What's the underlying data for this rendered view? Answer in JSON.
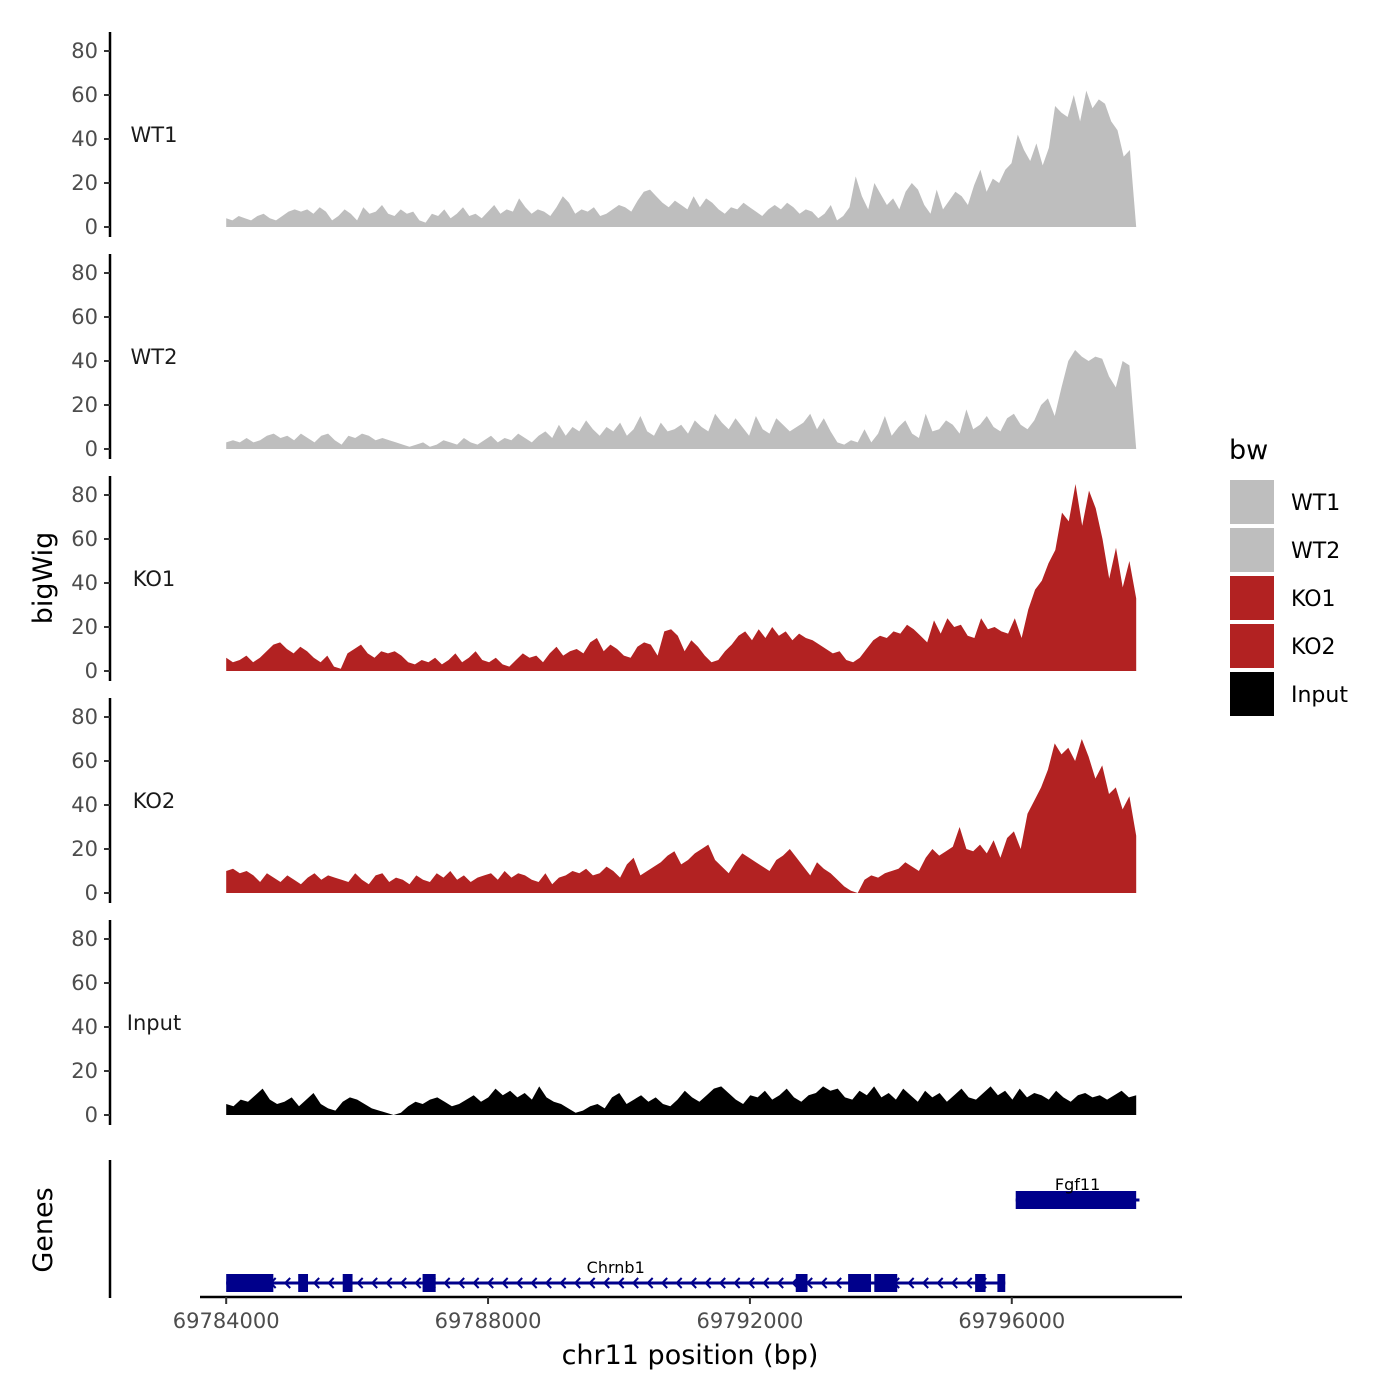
{
  "chart_data": {
    "type": "area",
    "ylabel": "bigWig",
    "xlabel": "chr11 position (bp)",
    "gene_track_label": "Genes",
    "x_range": [
      69784000,
      69797900
    ],
    "x_axis_range": [
      69783600,
      69798600
    ],
    "x_ticks": [
      {
        "value": 69784000,
        "label": "69784000"
      },
      {
        "value": 69788000,
        "label": "69788000"
      },
      {
        "value": 69792000,
        "label": "69792000"
      },
      {
        "value": 69796000,
        "label": "69796000"
      }
    ],
    "y_ticks": [
      0,
      20,
      40,
      60,
      80
    ],
    "ylim": [
      0,
      88
    ],
    "legend": {
      "title": "bw",
      "entries": [
        {
          "label": "WT1",
          "color": "#BEBEBE"
        },
        {
          "label": "WT2",
          "color": "#BEBEBE"
        },
        {
          "label": "KO1",
          "color": "#B22222"
        },
        {
          "label": "KO2",
          "color": "#B22222"
        },
        {
          "label": "Input",
          "color": "#000000"
        }
      ]
    },
    "series": [
      {
        "name": "WT1",
        "color": "#BEBEBE",
        "values": [
          4,
          3,
          5,
          4,
          3,
          5,
          6,
          4,
          3,
          5,
          7,
          8,
          7,
          8,
          6,
          9,
          7,
          3,
          5,
          8,
          6,
          3,
          9,
          6,
          7,
          10,
          6,
          5,
          8,
          6,
          7,
          3,
          2,
          6,
          5,
          8,
          4,
          6,
          9,
          5,
          6,
          4,
          7,
          10,
          6,
          8,
          7,
          13,
          9,
          6,
          8,
          7,
          5,
          9,
          14,
          11,
          6,
          8,
          7,
          9,
          5,
          6,
          8,
          10,
          9,
          7,
          12,
          16,
          17,
          14,
          11,
          9,
          12,
          10,
          8,
          14,
          9,
          13,
          11,
          8,
          6,
          9,
          8,
          11,
          9,
          7,
          5,
          8,
          10,
          8,
          11,
          9,
          6,
          8,
          7,
          4,
          6,
          10,
          3,
          5,
          9,
          23,
          14,
          8,
          20,
          15,
          10,
          13,
          8,
          16,
          20,
          17,
          10,
          6,
          17,
          8,
          12,
          16,
          14,
          10,
          19,
          26,
          16,
          22,
          20,
          26,
          29,
          42,
          35,
          30,
          38,
          28,
          36,
          55,
          52,
          50,
          60,
          48,
          62,
          54,
          58,
          56,
          48,
          44,
          32,
          35,
          0
        ]
      },
      {
        "name": "WT2",
        "color": "#BEBEBE",
        "values": [
          3,
          4,
          3,
          5,
          3,
          4,
          6,
          7,
          5,
          6,
          4,
          7,
          5,
          3,
          6,
          7,
          4,
          2,
          6,
          5,
          7,
          6,
          4,
          5,
          4,
          3,
          2,
          1,
          2,
          3,
          1,
          2,
          4,
          3,
          2,
          5,
          3,
          2,
          4,
          6,
          3,
          5,
          4,
          7,
          5,
          3,
          6,
          8,
          5,
          11,
          6,
          10,
          8,
          13,
          9,
          6,
          10,
          8,
          12,
          6,
          9,
          15,
          8,
          6,
          12,
          8,
          9,
          11,
          7,
          13,
          10,
          8,
          16,
          12,
          9,
          14,
          10,
          6,
          15,
          9,
          7,
          14,
          11,
          8,
          10,
          12,
          16,
          9,
          14,
          8,
          3,
          2,
          4,
          3,
          9,
          3,
          7,
          15,
          6,
          10,
          13,
          7,
          5,
          16,
          8,
          9,
          13,
          11,
          7,
          18,
          9,
          11,
          15,
          10,
          8,
          14,
          16,
          11,
          9,
          13,
          20,
          23,
          15,
          28,
          40,
          45,
          42,
          40,
          42,
          41,
          33,
          28,
          40,
          38,
          0
        ]
      },
      {
        "name": "KO1",
        "color": "#B22222",
        "values": [
          6,
          4,
          5,
          7,
          4,
          6,
          9,
          12,
          13,
          10,
          8,
          11,
          9,
          6,
          4,
          7,
          2,
          1,
          8,
          10,
          12,
          8,
          6,
          9,
          8,
          9,
          7,
          4,
          3,
          5,
          4,
          6,
          3,
          5,
          8,
          4,
          6,
          9,
          5,
          4,
          6,
          3,
          2,
          5,
          8,
          6,
          7,
          4,
          8,
          11,
          7,
          9,
          10,
          8,
          13,
          15,
          9,
          12,
          10,
          7,
          6,
          11,
          13,
          12,
          7,
          18,
          19,
          16,
          9,
          14,
          11,
          7,
          4,
          5,
          9,
          12,
          16,
          18,
          14,
          19,
          15,
          20,
          16,
          18,
          14,
          17,
          15,
          14,
          12,
          10,
          8,
          9,
          5,
          4,
          6,
          10,
          14,
          16,
          15,
          18,
          17,
          21,
          19,
          16,
          13,
          23,
          17,
          24,
          20,
          21,
          16,
          15,
          24,
          19,
          20,
          18,
          17,
          24,
          15,
          28,
          37,
          41,
          49,
          55,
          72,
          68,
          85,
          66,
          82,
          74,
          60,
          42,
          56,
          38,
          50,
          33
        ]
      },
      {
        "name": "KO2",
        "color": "#B22222",
        "values": [
          10,
          11,
          9,
          10,
          8,
          5,
          9,
          7,
          5,
          8,
          6,
          4,
          7,
          9,
          6,
          8,
          7,
          6,
          5,
          9,
          6,
          4,
          8,
          9,
          5,
          7,
          6,
          4,
          8,
          6,
          5,
          9,
          7,
          10,
          6,
          8,
          5,
          7,
          8,
          9,
          6,
          10,
          7,
          9,
          8,
          6,
          5,
          9,
          4,
          7,
          8,
          10,
          9,
          11,
          8,
          9,
          12,
          10,
          7,
          13,
          16,
          8,
          10,
          12,
          14,
          17,
          19,
          13,
          15,
          18,
          20,
          22,
          15,
          12,
          9,
          14,
          18,
          16,
          14,
          12,
          10,
          15,
          17,
          20,
          16,
          12,
          8,
          14,
          11,
          9,
          6,
          3,
          1,
          0,
          6,
          8,
          7,
          9,
          10,
          11,
          14,
          12,
          10,
          16,
          20,
          17,
          19,
          21,
          30,
          20,
          19,
          22,
          18,
          24,
          16,
          25,
          28,
          20,
          36,
          42,
          48,
          56,
          68,
          63,
          66,
          60,
          70,
          62,
          52,
          58,
          45,
          48,
          38,
          44,
          26
        ]
      },
      {
        "name": "Input",
        "color": "#000000",
        "values": [
          5,
          4,
          7,
          6,
          9,
          12,
          7,
          5,
          6,
          8,
          4,
          7,
          10,
          5,
          3,
          2,
          6,
          8,
          7,
          5,
          3,
          2,
          1,
          0,
          1,
          4,
          6,
          5,
          7,
          8,
          6,
          4,
          5,
          7,
          9,
          6,
          8,
          12,
          9,
          11,
          8,
          10,
          7,
          13,
          8,
          6,
          5,
          3,
          1,
          2,
          4,
          5,
          3,
          8,
          10,
          5,
          7,
          9,
          6,
          8,
          5,
          4,
          7,
          11,
          8,
          6,
          9,
          12,
          13,
          10,
          7,
          5,
          9,
          8,
          11,
          7,
          9,
          12,
          8,
          6,
          9,
          10,
          13,
          11,
          12,
          8,
          7,
          11,
          9,
          13,
          8,
          10,
          7,
          12,
          9,
          6,
          11,
          8,
          10,
          6,
          9,
          12,
          8,
          7,
          10,
          13,
          9,
          11,
          7,
          12,
          8,
          10,
          9,
          7,
          11,
          8,
          6,
          9,
          10,
          8,
          9,
          7,
          9,
          11,
          8,
          9
        ]
      }
    ],
    "genes": [
      {
        "name": "Chrnb1",
        "start": 69784000,
        "end": 69795900,
        "strand": "-",
        "exons": [
          [
            69784000,
            69784720
          ],
          [
            69785100,
            69785250
          ],
          [
            69785780,
            69785930
          ],
          [
            69787000,
            69787200
          ],
          [
            69792700,
            69792880
          ],
          [
            69793500,
            69793850
          ],
          [
            69793900,
            69794250
          ],
          [
            69795440,
            69795600
          ],
          [
            69795780,
            69795900
          ]
        ]
      },
      {
        "name": "Fgf11",
        "start": 69796060,
        "end": 69797950,
        "strand": "+",
        "exons": [
          [
            69796060,
            69797900
          ]
        ]
      }
    ]
  }
}
